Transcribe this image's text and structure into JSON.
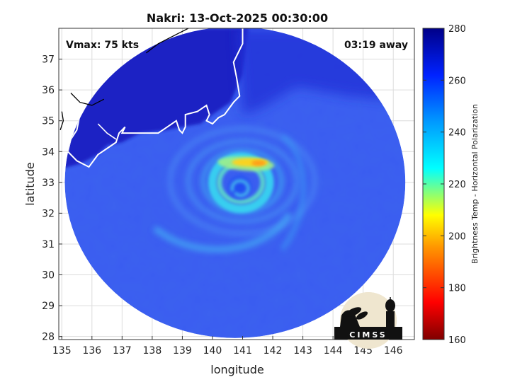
{
  "chart_data": {
    "type": "heatmap",
    "title": "Nakri: 13-Oct-2025 00:30:00",
    "annotation_left": "Vmax: 75 kts",
    "annotation_right": "03:19 away",
    "xlabel": "longitude",
    "ylabel": "latitude",
    "xlim": [
      134.9,
      146.7
    ],
    "ylim": [
      27.9,
      38.0
    ],
    "xticks": [
      135,
      136,
      137,
      138,
      139,
      140,
      141,
      142,
      143,
      144,
      145,
      146
    ],
    "yticks": [
      28,
      29,
      30,
      31,
      32,
      33,
      34,
      35,
      36,
      37
    ],
    "grid": true,
    "colorbar": {
      "label": "Brightness Temp - Horizontal Polarization",
      "min": 160,
      "max": 280,
      "ticks": [
        160,
        180,
        200,
        220,
        240,
        260,
        280
      ],
      "colormap": "jet"
    },
    "swath": {
      "center_lon": 140.75,
      "center_lat": 33.0,
      "radius_lon": 5.65,
      "radius_lat": 5.05
    },
    "storm_center": {
      "lon": 140.9,
      "lat": 32.9
    },
    "eyewall_max": {
      "lon": 141.3,
      "lat": 33.65,
      "value": 195
    },
    "logo_text": "CIMSS"
  },
  "colors": {
    "background_ocean": "#2f54ee",
    "land_cold": "#1a22c8",
    "eyewall_warm": "#ffd21e",
    "coastline": "#ffffff"
  }
}
